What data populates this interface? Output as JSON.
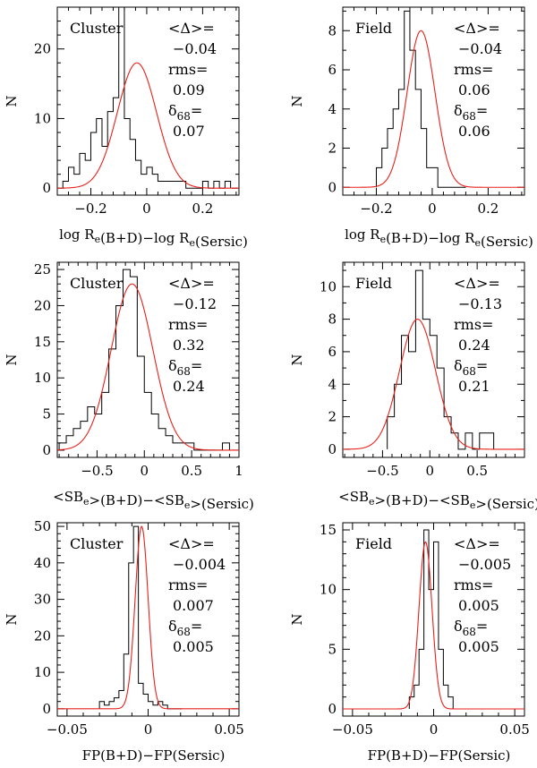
{
  "chart_data": [
    {
      "type": "histogram",
      "tag": "Cluster",
      "stats": [
        "<Δ>=",
        "−0.04",
        "rms=",
        "0.09",
        "δ68=",
        "0.07"
      ],
      "ylabel": "N",
      "xlabel": "log Re(B+D)−log Re(Sersic)",
      "xlim": [
        -0.32,
        0.33
      ],
      "ylim": [
        -1,
        26
      ],
      "xticks": [
        -0.2,
        0,
        0.2
      ],
      "xtick_labels": [
        "−0.2",
        "0",
        "0.2"
      ],
      "yticks": [
        0,
        10,
        20
      ],
      "ytick_labels": [
        "0",
        "10",
        "20"
      ],
      "histogram": {
        "bin_start": -0.3,
        "bin_width": 0.02,
        "counts": [
          1,
          3,
          2,
          5,
          4,
          8,
          10,
          6,
          11,
          13,
          26,
          10,
          7,
          4,
          2,
          3,
          2,
          1,
          1,
          1,
          1,
          1,
          0,
          0,
          0,
          1,
          0,
          1,
          0,
          1
        ]
      },
      "gaussian": {
        "mu": -0.035,
        "sigma": 0.07,
        "amp": 18
      }
    },
    {
      "type": "histogram",
      "tag": "Field",
      "stats": [
        "<Δ>=",
        "−0.04",
        "rms=",
        "0.06",
        "δ68=",
        "0.06"
      ],
      "ylabel": "N",
      "xlabel": "log Re(B+D)−log Re(Sersic)",
      "xlim": [
        -0.32,
        0.33
      ],
      "ylim": [
        -0.4,
        9.2
      ],
      "xticks": [
        -0.2,
        0,
        0.2
      ],
      "xtick_labels": [
        "−0.2",
        "0",
        "0.2"
      ],
      "yticks": [
        0,
        2,
        4,
        6,
        8
      ],
      "ytick_labels": [
        "0",
        "2",
        "4",
        "6",
        "8"
      ],
      "histogram": {
        "bin_start": -0.2,
        "bin_width": 0.02,
        "counts": [
          1,
          2,
          3,
          4,
          5,
          9,
          7,
          5,
          3,
          1,
          1,
          0,
          0,
          0,
          0,
          0
        ]
      },
      "gaussian": {
        "mu": -0.04,
        "sigma": 0.05,
        "amp": 8
      }
    },
    {
      "type": "histogram",
      "tag": "Cluster",
      "stats": [
        "<Δ>=",
        "−0.12",
        "rms=",
        "0.32",
        "δ68=",
        "0.24"
      ],
      "ylabel": "N",
      "xlabel": "<SBe>(B+D)−<SBe>(Sersic)",
      "xlim": [
        -0.92,
        1.0
      ],
      "ylim": [
        -1,
        26
      ],
      "xticks": [
        -0.5,
        0,
        0.5,
        1
      ],
      "xtick_labels": [
        "−0.5",
        "0",
        "0.5",
        "1"
      ],
      "yticks": [
        0,
        5,
        10,
        15,
        20,
        25
      ],
      "ytick_labels": [
        "0",
        "5",
        "10",
        "15",
        "20",
        "25"
      ],
      "histogram": {
        "bin_start": -0.9,
        "bin_width": 0.075,
        "counts": [
          1,
          2,
          3,
          4,
          6,
          5,
          8,
          14,
          20,
          25,
          24,
          13,
          8,
          5,
          3,
          2,
          1,
          1,
          1,
          0,
          0,
          0,
          0,
          1
        ]
      },
      "gaussian": {
        "mu": -0.13,
        "sigma": 0.22,
        "amp": 23
      }
    },
    {
      "type": "histogram",
      "tag": "Field",
      "stats": [
        "<Δ>=",
        "−0.13",
        "rms=",
        "0.24",
        "δ68=",
        "0.21"
      ],
      "ylabel": "N",
      "xlabel": "<SBe>(B+D)−<SBe>(Sersic)",
      "xlim": [
        -0.92,
        1.0
      ],
      "ylim": [
        -0.5,
        11.5
      ],
      "xticks": [
        -0.5,
        0,
        0.5
      ],
      "xtick_labels": [
        "−0.5",
        "0",
        "0.5"
      ],
      "yticks": [
        0,
        2,
        4,
        6,
        8,
        10
      ],
      "ytick_labels": [
        "0",
        "2",
        "4",
        "6",
        "8",
        "10"
      ],
      "histogram": {
        "bin_start": -0.45,
        "bin_width": 0.075,
        "counts": [
          2,
          4,
          7,
          6,
          11,
          8,
          7,
          5,
          2,
          1,
          0,
          1,
          0,
          1,
          1
        ]
      },
      "gaussian": {
        "mu": -0.13,
        "sigma": 0.19,
        "amp": 8
      }
    },
    {
      "type": "histogram",
      "tag": "Cluster",
      "stats": [
        "<Δ>=",
        "−0.004",
        "rms=",
        "0.007",
        "δ68=",
        "0.005"
      ],
      "ylabel": "N",
      "xlabel": "FP(B+D)−FP(Sersic)",
      "xlim": [
        -0.056,
        0.056
      ],
      "ylim": [
        -2,
        51
      ],
      "xticks": [
        -0.05,
        0,
        0.05
      ],
      "xtick_labels": [
        "−0.05",
        "0",
        "0.05"
      ],
      "yticks": [
        0,
        10,
        20,
        30,
        40,
        50
      ],
      "ytick_labels": [
        "0",
        "10",
        "20",
        "30",
        "40",
        "50"
      ],
      "histogram": {
        "bin_start": -0.03,
        "bin_width": 0.003,
        "counts": [
          2,
          1,
          2,
          3,
          5,
          15,
          40,
          50,
          7,
          4,
          2,
          1,
          2,
          1,
          0,
          0,
          0
        ]
      },
      "gaussian": {
        "mu": -0.004,
        "sigma": 0.004,
        "amp": 50
      }
    },
    {
      "type": "histogram",
      "tag": "Field",
      "stats": [
        "<Δ>=",
        "−0.005",
        "rms=",
        "0.005",
        "δ68=",
        "0.005"
      ],
      "ylabel": "N",
      "xlabel": "FP(B+D)−FP(Sersic)",
      "xlim": [
        -0.056,
        0.056
      ],
      "ylim": [
        -0.6,
        15.6
      ],
      "xticks": [
        -0.05,
        0,
        0.05
      ],
      "xtick_labels": [
        "−0.05",
        "0",
        "0.05"
      ],
      "yticks": [
        0,
        5,
        10,
        15
      ],
      "ytick_labels": [
        "0",
        "5",
        "10",
        "15"
      ],
      "histogram": {
        "bin_start": -0.015,
        "bin_width": 0.003,
        "counts": [
          1,
          2,
          5,
          15,
          10,
          14,
          5,
          2,
          1
        ]
      },
      "gaussian": {
        "mu": -0.005,
        "sigma": 0.004,
        "amp": 14
      }
    }
  ]
}
